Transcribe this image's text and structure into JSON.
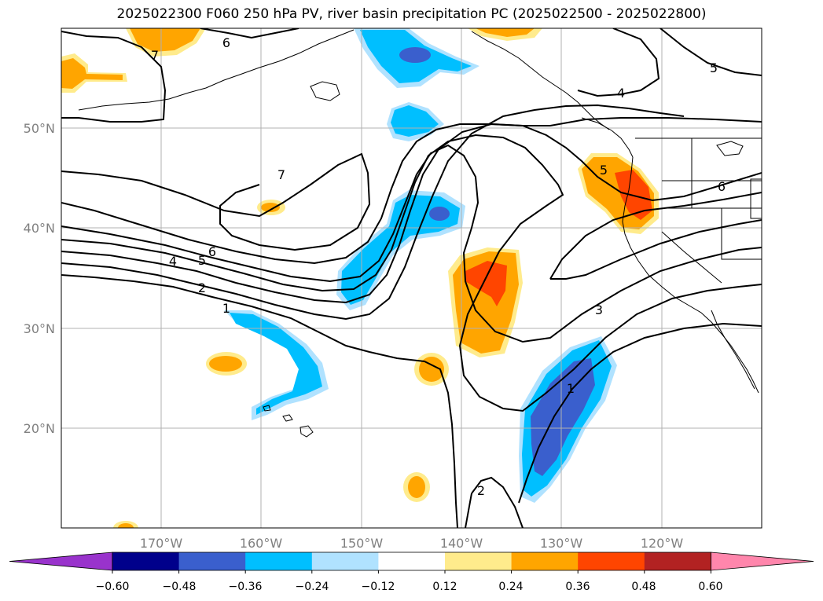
{
  "title": "2025022300 F060 250 hPa PV, river basin precipitation PC (2025022500 - 2025022800)",
  "map": {
    "lat_labels": [
      "50°N",
      "40°N",
      "30°N",
      "20°N"
    ],
    "lon_labels": [
      "170°W",
      "160°W",
      "150°W",
      "140°W",
      "130°W",
      "120°W"
    ],
    "contour_labels": [
      "6",
      "7",
      "5",
      "4",
      "7",
      "6",
      "5",
      "4",
      "2",
      "1",
      "5",
      "6",
      "3",
      "1",
      "2"
    ]
  },
  "colorbar": {
    "colors": [
      "#9933cc",
      "#00008b",
      "#3a5fcd",
      "#00bfff",
      "#b0e2ff",
      "#ffffff",
      "#ffeb8c",
      "#ffa500",
      "#ff4500",
      "#b22222",
      "#ff86ac"
    ],
    "tick_labels": [
      "−0.60",
      "−0.48",
      "−0.36",
      "−0.24",
      "−0.12",
      "0.12",
      "0.24",
      "0.36",
      "0.48",
      "0.60"
    ]
  },
  "colors": {
    "grid": "#b0b0b0",
    "contour": "#000000",
    "coast": "#000000"
  }
}
